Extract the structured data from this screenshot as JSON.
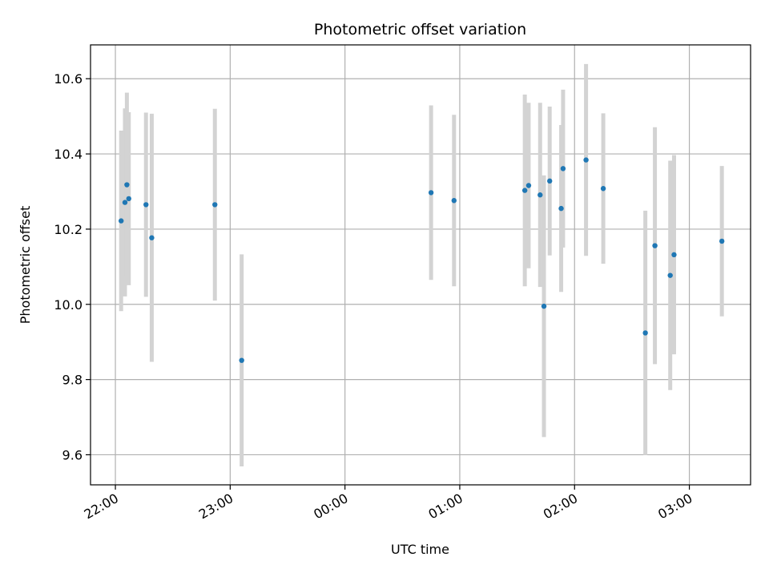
{
  "chart_data": {
    "type": "scatter",
    "title": "Photometric offset variation",
    "xlabel": "UTC time",
    "ylabel": "Photometric offset",
    "x_ticks": [
      "22:00",
      "23:00",
      "00:00",
      "01:00",
      "02:00",
      "03:00"
    ],
    "y_ticks": [
      "9.6",
      "9.8",
      "10.0",
      "10.2",
      "10.4",
      "10.6"
    ],
    "x_axis": "time of day (HH:MM UTC), spanning 21:47 to 03:32 next day",
    "ylim": [
      9.52,
      10.69
    ],
    "grid": true,
    "colors": {
      "points": "#1f77b4",
      "error_bars": "#d3d3d3",
      "grid": "#b0b0b0"
    },
    "points": [
      {
        "x": "22:03",
        "y": 10.222,
        "yerr": 0.24
      },
      {
        "x": "22:05",
        "y": 10.271,
        "yerr": 0.25
      },
      {
        "x": "22:06",
        "y": 10.318,
        "yerr": 0.245
      },
      {
        "x": "22:07",
        "y": 10.281,
        "yerr": 0.23
      },
      {
        "x": "22:16",
        "y": 10.265,
        "yerr": 0.245
      },
      {
        "x": "22:19",
        "y": 10.177,
        "yerr": 0.33
      },
      {
        "x": "22:52",
        "y": 10.265,
        "yerr": 0.255
      },
      {
        "x": "23:06",
        "y": 9.851,
        "yerr": 0.282
      },
      {
        "x": "00:45",
        "y": 10.297,
        "yerr": 0.232
      },
      {
        "x": "00:57",
        "y": 10.276,
        "yerr": 0.228
      },
      {
        "x": "01:34",
        "y": 10.303,
        "yerr": 0.255
      },
      {
        "x": "01:36",
        "y": 10.316,
        "yerr": 0.22
      },
      {
        "x": "01:42",
        "y": 10.291,
        "yerr": 0.245
      },
      {
        "x": "01:44",
        "y": 9.995,
        "yerr": 0.348
      },
      {
        "x": "01:47",
        "y": 10.328,
        "yerr": 0.198
      },
      {
        "x": "01:53",
        "y": 10.255,
        "yerr": 0.222
      },
      {
        "x": "01:54",
        "y": 10.361,
        "yerr": 0.21
      },
      {
        "x": "02:06",
        "y": 10.384,
        "yerr": 0.255
      },
      {
        "x": "02:15",
        "y": 10.308,
        "yerr": 0.2
      },
      {
        "x": "02:37",
        "y": 9.924,
        "yerr": 0.325
      },
      {
        "x": "02:42",
        "y": 10.156,
        "yerr": 0.315
      },
      {
        "x": "02:50",
        "y": 10.077,
        "yerr": 0.305
      },
      {
        "x": "02:52",
        "y": 10.132,
        "yerr": 0.265
      },
      {
        "x": "03:17",
        "y": 10.168,
        "yerr": 0.2
      }
    ]
  }
}
